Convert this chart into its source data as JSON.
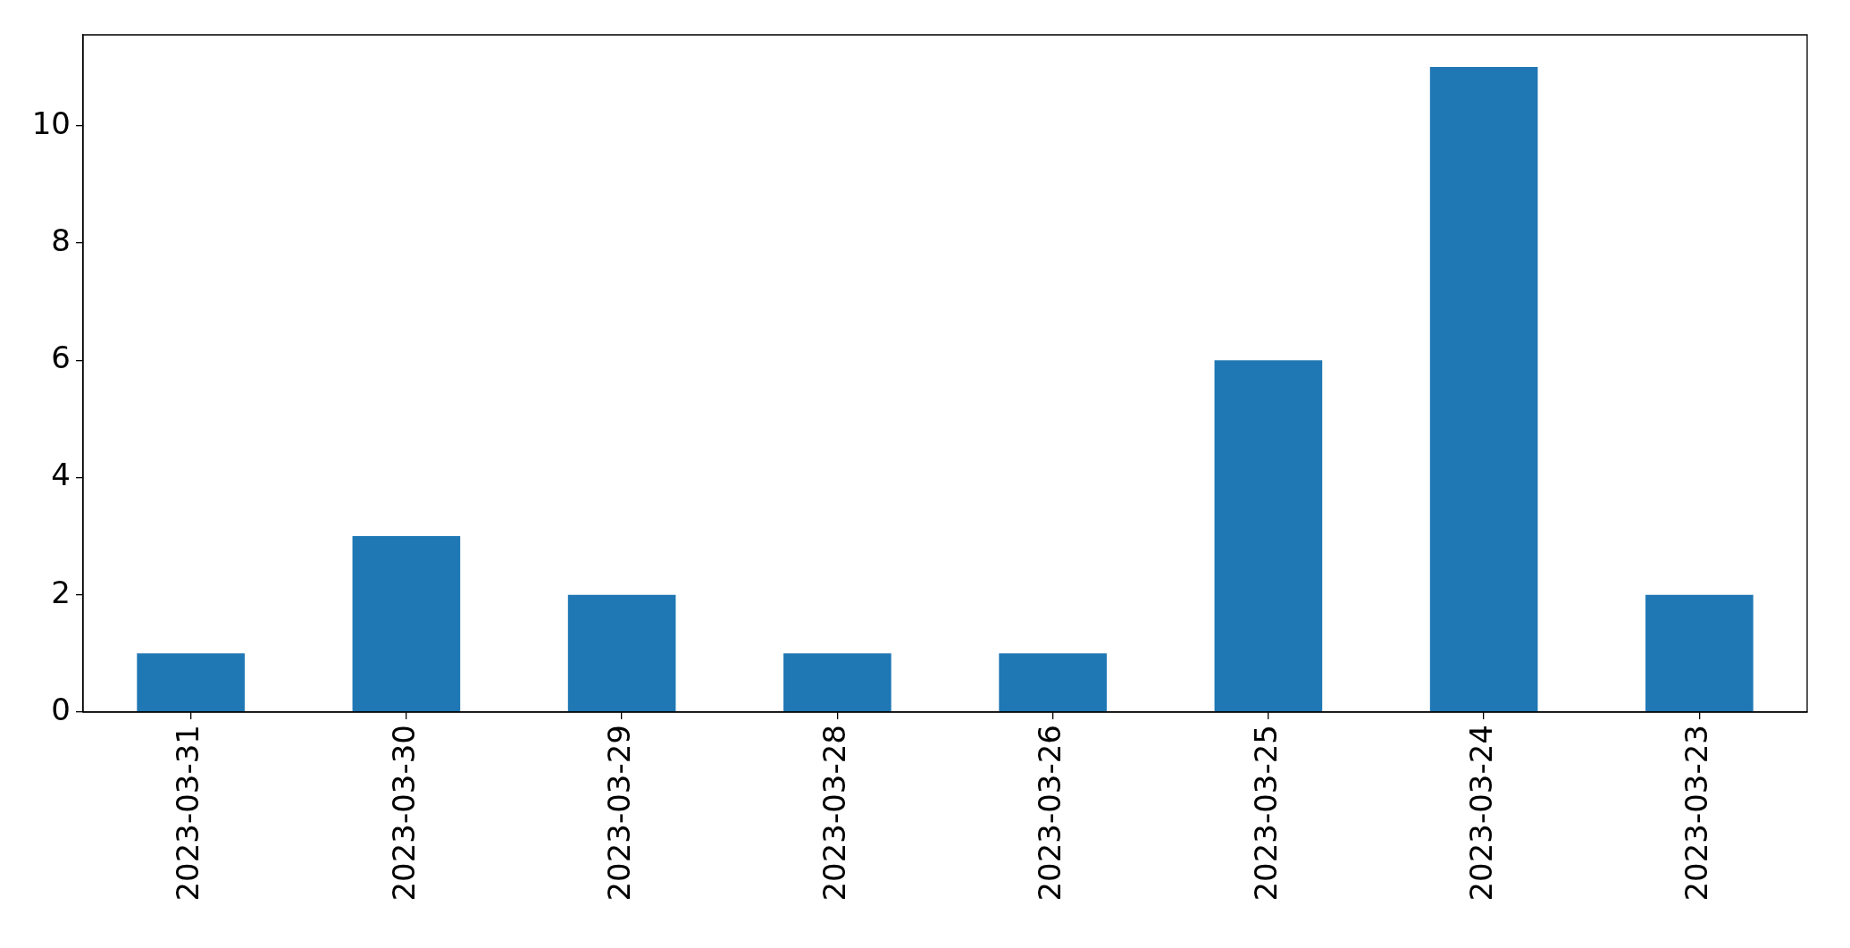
{
  "chart_data": {
    "type": "bar",
    "categories": [
      "2023-03-31",
      "2023-03-30",
      "2023-03-29",
      "2023-03-28",
      "2023-03-26",
      "2023-03-25",
      "2023-03-24",
      "2023-03-23"
    ],
    "values": [
      1,
      3,
      2,
      1,
      1,
      6,
      11,
      2
    ],
    "color": "#1f77b4",
    "ylim": [
      0,
      11.55
    ],
    "yticks": [
      0,
      2,
      4,
      6,
      8,
      10
    ]
  }
}
